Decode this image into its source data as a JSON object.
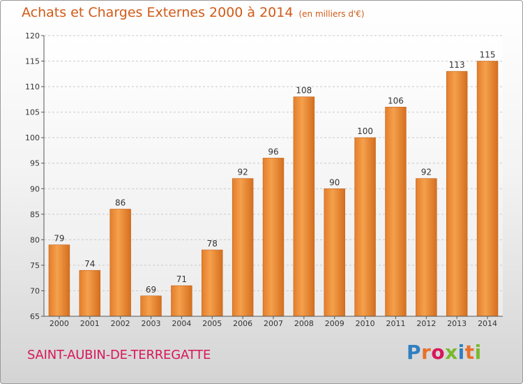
{
  "header": {
    "title": "Achats et Charges Externes 2000 à 2014",
    "subtitle": "(en milliers d'€)"
  },
  "footer": {
    "town": "SAINT-AUBIN-DE-TERREGATTE",
    "brand_letters": [
      "P",
      "r",
      "o",
      "x",
      "i",
      "t",
      "i"
    ],
    "brand_colors": [
      "#2f7fc1",
      "#e8702a",
      "#d8175a",
      "#7ab82e",
      "#2f7fc1",
      "#e8702a",
      "#7ab82e"
    ]
  },
  "chart_data": {
    "type": "bar",
    "title": "Achats et Charges Externes 2000 à 2014",
    "subtitle": "(en milliers d'€)",
    "categories": [
      "2000",
      "2001",
      "2002",
      "2003",
      "2004",
      "2005",
      "2006",
      "2007",
      "2008",
      "2009",
      "2010",
      "2011",
      "2012",
      "2013",
      "2014"
    ],
    "values": [
      79,
      74,
      86,
      69,
      71,
      78,
      92,
      96,
      108,
      90,
      100,
      106,
      92,
      113,
      115
    ],
    "ylim": [
      65,
      120
    ],
    "yticks": [
      65,
      70,
      75,
      80,
      85,
      90,
      95,
      100,
      105,
      110,
      115,
      120
    ],
    "grid": true,
    "bar_color": "#f2963f",
    "bar_color_dark": "#d9731f"
  }
}
